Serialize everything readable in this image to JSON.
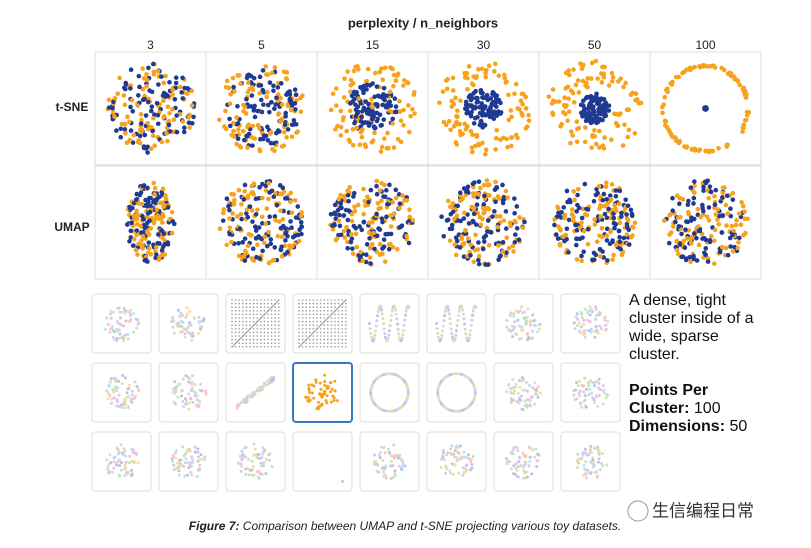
{
  "header": {
    "title": "perplexity / n_neighbors",
    "columns": [
      3,
      5,
      15,
      30,
      50,
      100
    ],
    "rows": [
      "t-SNE",
      "UMAP"
    ]
  },
  "description": {
    "text": "A dense, tight cluster inside of a wide, sparse cluster.",
    "points_label": "Points Per Cluster:",
    "points_value": 100,
    "dimensions_label": "Dimensions:",
    "dimensions_value": 50
  },
  "caption": {
    "label": "Figure 7:",
    "text": " Comparison between UMAP and t-SNE projecting various toy datasets."
  },
  "watermark": "生信编程日常"
}
